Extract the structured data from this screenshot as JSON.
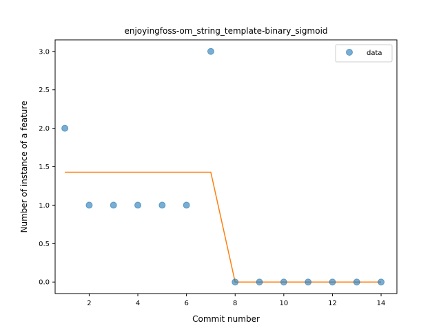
{
  "chart_data": {
    "type": "scatter",
    "title": "enjoyingfoss-om_string_template-binary_sigmoid",
    "xlabel": "Commit number",
    "ylabel": "Number of instance of a feature",
    "xlim": [
      0.6,
      14.65
    ],
    "ylim": [
      -0.15,
      3.15
    ],
    "xticks": [
      2,
      4,
      6,
      8,
      10,
      12,
      14
    ],
    "yticks": [
      0.0,
      0.5,
      1.0,
      1.5,
      2.0,
      2.5,
      3.0
    ],
    "grid": false,
    "legend_position": "top-right",
    "series": [
      {
        "name": "data",
        "kind": "scatter",
        "color": "#1f77b4",
        "x": [
          1,
          2,
          3,
          4,
          5,
          6,
          7,
          8,
          9,
          10,
          11,
          12,
          13,
          14
        ],
        "y": [
          2,
          1,
          1,
          1,
          1,
          1,
          3,
          0,
          0,
          0,
          0,
          0,
          0,
          0
        ]
      },
      {
        "kind": "line",
        "color": "#ff7f0e",
        "x": [
          1,
          2,
          3,
          4,
          5,
          6,
          7,
          8,
          9,
          10,
          11,
          12,
          13,
          14
        ],
        "y": [
          1.4286,
          1.4286,
          1.4286,
          1.4286,
          1.4286,
          1.4286,
          1.4286,
          0,
          0,
          0,
          0,
          0,
          0,
          0
        ]
      }
    ]
  }
}
